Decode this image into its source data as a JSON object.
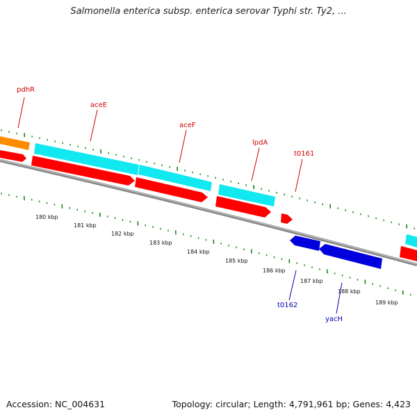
{
  "title": "Salmonella enterica subsp. enterica serovar Typhi str. Ty2, ...",
  "footer": {
    "accession": "Accession: NC_004631",
    "summary": "Topology: circular; Length: 4,791,961 bp; Genes: 4,423"
  },
  "colors": {
    "backbone": "#8a8a8a",
    "tick": "#118811",
    "cds_forward": "#ff0000",
    "cds_reverse": "#0000dd",
    "gene_cyan": "#11e8f0",
    "gene_orange": "#ff8c00",
    "label_forward": "#cc0000",
    "label_reverse": "#0000aa"
  },
  "scale": {
    "unit": "kbp",
    "labels": [
      "180 kbp",
      "181 kbp",
      "182 kbp",
      "183 kbp",
      "184 kbp",
      "185 kbp",
      "186 kbp",
      "187 kbp",
      "188 kbp",
      "189 kbp"
    ]
  },
  "genes": [
    {
      "name": "pdhR",
      "strand": "forward"
    },
    {
      "name": "aceE",
      "strand": "forward"
    },
    {
      "name": "aceF",
      "strand": "forward"
    },
    {
      "name": "lpdA",
      "strand": "forward"
    },
    {
      "name": "t0161",
      "strand": "forward"
    },
    {
      "name": "t0162",
      "strand": "reverse"
    },
    {
      "name": "yacH",
      "strand": "reverse"
    }
  ]
}
